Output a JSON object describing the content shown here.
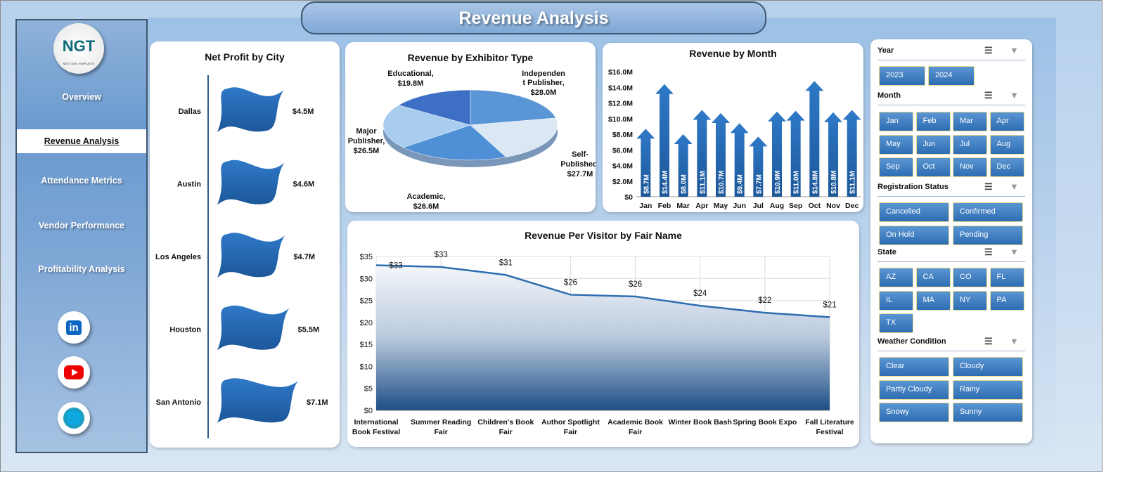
{
  "title": "Revenue Analysis",
  "sidebar": {
    "logo_text": "NGT",
    "logo_sub": "NEXT GEN TEMPLATES",
    "items": [
      {
        "label": "Overview"
      },
      {
        "label": "Revenue Analysis"
      },
      {
        "label": "Attendance Metrics"
      },
      {
        "label": "Vendor Performance"
      },
      {
        "label": "Profitability Analysis"
      }
    ],
    "social": {
      "linkedin": "in"
    }
  },
  "chart_data": [
    {
      "type": "bar",
      "title": "Net Profit by City",
      "categories": [
        "Dallas",
        "Austin",
        "Los Angeles",
        "Houston",
        "San Antonio"
      ],
      "values": [
        4.5,
        4.6,
        4.7,
        5.5,
        7.1
      ],
      "labels": [
        "$4.5M",
        "$4.6M",
        "$4.7M",
        "$5.5M",
        "$7.1M"
      ],
      "unit": "$M"
    },
    {
      "type": "pie",
      "title": "Revenue by Exhibitor Type",
      "series": [
        {
          "name": "Independent Publisher",
          "value": 28.0,
          "label": "$28.0M"
        },
        {
          "name": "Self-Published",
          "value": 27.7,
          "label": "$27.7M"
        },
        {
          "name": "Academic",
          "value": 26.6,
          "label": "$26.6M"
        },
        {
          "name": "Major Publisher",
          "value": 26.5,
          "label": "$26.5M"
        },
        {
          "name": "Educational",
          "value": 19.8,
          "label": "$19.8M"
        }
      ],
      "colors": [
        "#5a96d6",
        "#dce7f4",
        "#4f8fd6",
        "#a9cdef",
        "#3d6fc4"
      ]
    },
    {
      "type": "bar",
      "title": "Revenue  by Month",
      "categories": [
        "Jan",
        "Feb",
        "Mar",
        "Apr",
        "May",
        "Jun",
        "Jul",
        "Aug",
        "Sep",
        "Oct",
        "Nov",
        "Dec"
      ],
      "values": [
        8.7,
        14.4,
        8.0,
        11.1,
        10.7,
        9.4,
        7.7,
        10.9,
        11.0,
        14.8,
        10.8,
        11.1
      ],
      "labels": [
        "$8.7M",
        "$14.4M",
        "$8.0M",
        "$11.1M",
        "$10.7M",
        "$9.4M",
        "$7.7M",
        "$10.9M",
        "$11.0M",
        "$14.8M",
        "$10.8M",
        "$11.1M"
      ],
      "yticks": [
        "$0",
        "$2.0M",
        "$4.0M",
        "$6.0M",
        "$8.0M",
        "$10.0M",
        "$12.0M",
        "$14.0M",
        "$16.0M"
      ],
      "ylim": [
        0,
        16
      ]
    },
    {
      "type": "area",
      "title": "Revenue  Per Visitor by Fair Name",
      "categories": [
        "International Book Festival",
        "Summer Reading Fair",
        "Children's Book Fair",
        "Author Spotlight Fair",
        "Academic Book Fair",
        "Winter Book Bash",
        "Spring Book Expo",
        "Fall Literature Festival"
      ],
      "values": [
        33.0,
        32.6,
        30.8,
        26.3,
        25.9,
        23.8,
        22.2,
        21.2
      ],
      "labels": [
        "$33",
        "$33",
        "$31",
        "$26",
        "$26",
        "$24",
        "$22",
        "$21"
      ],
      "yticks": [
        "$0",
        "$5",
        "$10",
        "$15",
        "$20",
        "$25",
        "$30",
        "$35"
      ],
      "ylim": [
        0,
        35
      ],
      "grid": true
    }
  ],
  "slicers": [
    {
      "title": "Year",
      "items": [
        "2023",
        "2024"
      ]
    },
    {
      "title": "Month",
      "items": [
        "Jan",
        "Feb",
        "Mar",
        "Apr",
        "May",
        "Jun",
        "Jul",
        "Aug",
        "Sep",
        "Oct",
        "Nov",
        "Dec"
      ]
    },
    {
      "title": "Registration Status",
      "items": [
        "Cancelled",
        "Confirmed",
        "On Hold",
        "Pending"
      ]
    },
    {
      "title": "State",
      "items": [
        "AZ",
        "CA",
        "CO",
        "FL",
        "IL",
        "MA",
        "NY",
        "PA",
        "TX"
      ]
    },
    {
      "title": "Weather Condition",
      "items": [
        "Clear",
        "Cloudy",
        "Partly Cloudy",
        "Rainy",
        "Snowy",
        "Sunny"
      ]
    }
  ]
}
